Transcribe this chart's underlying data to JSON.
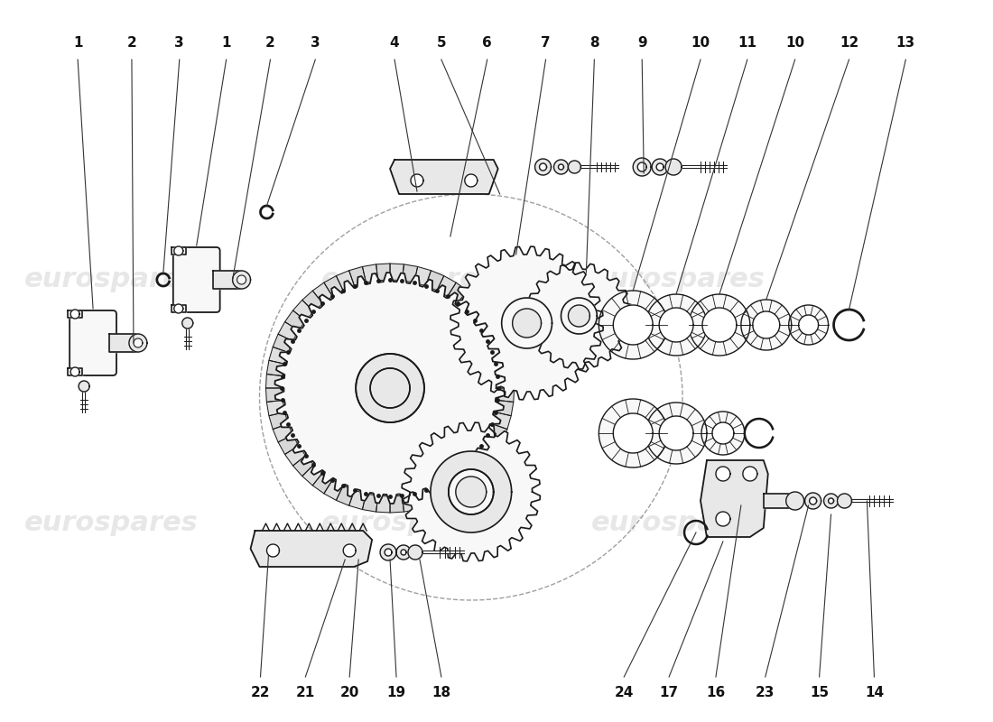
{
  "background_color": "#ffffff",
  "watermark_text": "eurospares",
  "watermark_color": "#c8c8c8",
  "line_color": "#1a1a1a",
  "fill_light": "#f8f8f8",
  "fill_mid": "#e8e8e8",
  "top_labels": [
    [
      "1",
      0.075
    ],
    [
      "2",
      0.13
    ],
    [
      "3",
      0.178
    ],
    [
      "1",
      0.225
    ],
    [
      "2",
      0.27
    ],
    [
      "3",
      0.315
    ],
    [
      "4",
      0.395
    ],
    [
      "5",
      0.443
    ],
    [
      "6",
      0.49
    ],
    [
      "7",
      0.548
    ],
    [
      "8",
      0.597
    ],
    [
      "9",
      0.645
    ],
    [
      "10",
      0.705
    ],
    [
      "11",
      0.752
    ],
    [
      "10",
      0.8
    ],
    [
      "12",
      0.855
    ],
    [
      "13",
      0.912
    ]
  ],
  "bottom_labels": [
    [
      "22",
      0.26
    ],
    [
      "21",
      0.305
    ],
    [
      "20",
      0.35
    ],
    [
      "19",
      0.397
    ],
    [
      "18",
      0.443
    ],
    [
      "24",
      0.628
    ],
    [
      "17",
      0.673
    ],
    [
      "16",
      0.72
    ],
    [
      "23",
      0.77
    ],
    [
      "15",
      0.825
    ],
    [
      "14",
      0.88
    ]
  ]
}
